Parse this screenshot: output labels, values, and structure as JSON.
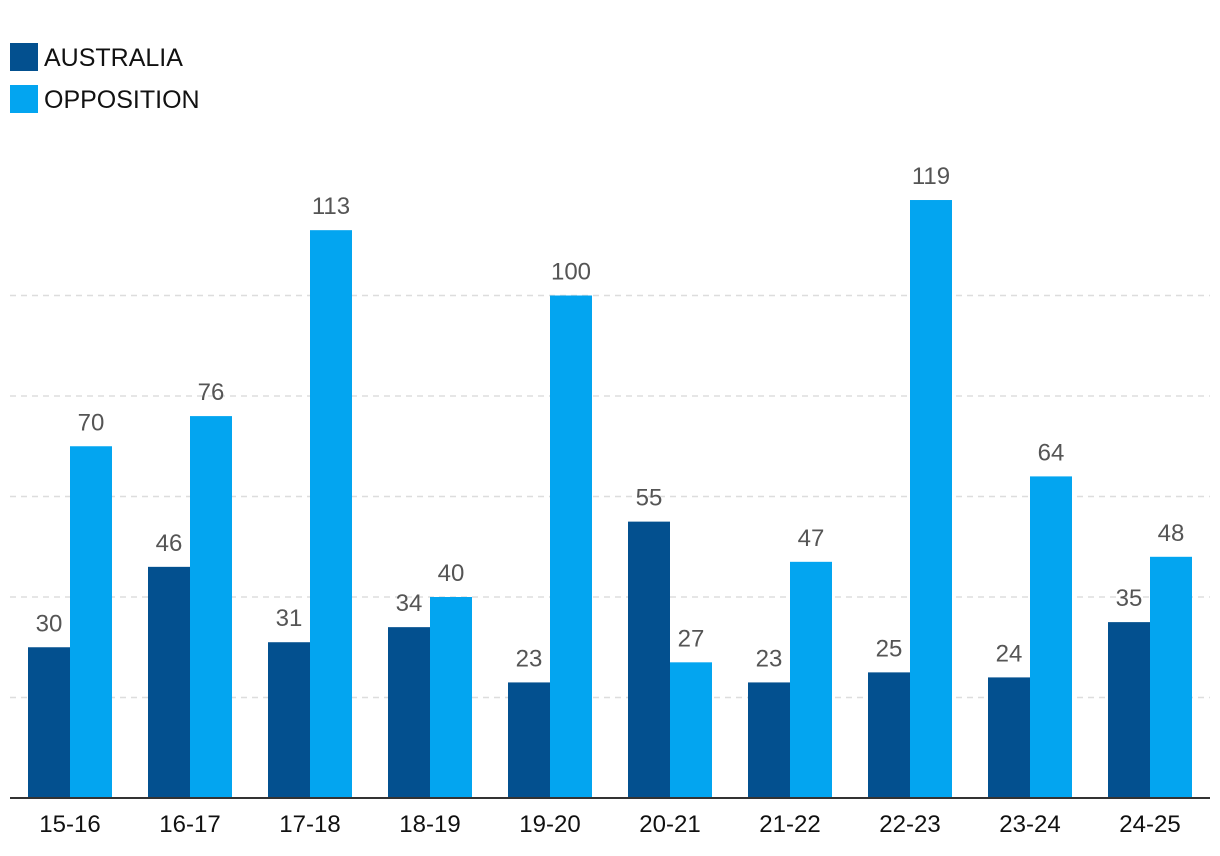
{
  "chart_data": {
    "type": "bar",
    "categories": [
      "15-16",
      "16-17",
      "17-18",
      "18-19",
      "19-20",
      "20-21",
      "21-22",
      "22-23",
      "23-24",
      "24-25"
    ],
    "series": [
      {
        "name": "AUSTRALIA",
        "color": "#03508f",
        "values": [
          30,
          46,
          31,
          34,
          23,
          55,
          23,
          25,
          24,
          35
        ]
      },
      {
        "name": "OPPOSITION",
        "color": "#03a5f0",
        "values": [
          70,
          76,
          113,
          40,
          100,
          27,
          47,
          119,
          64,
          48
        ]
      }
    ],
    "ylim": [
      0,
      120
    ],
    "ygrid_step": 20,
    "grid": true,
    "legend_position": "top-left",
    "title": "",
    "xlabel": "",
    "ylabel": ""
  }
}
